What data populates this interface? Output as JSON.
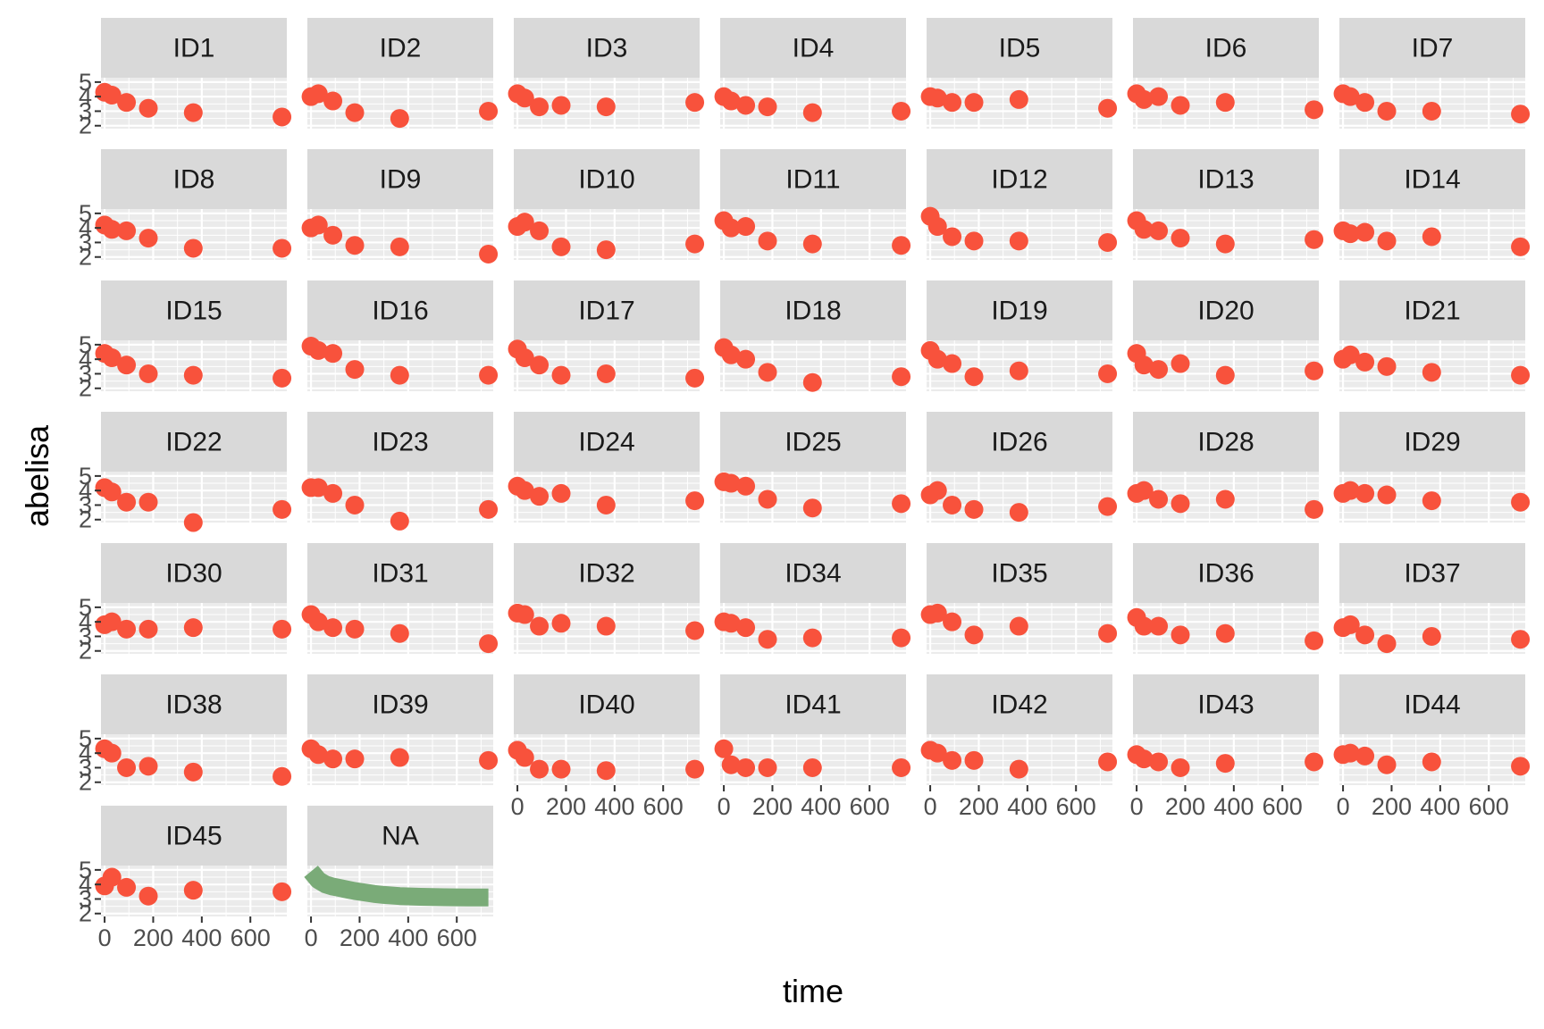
{
  "colors": {
    "panel_bg": "#ebebeb",
    "grid": "#ffffff",
    "strip_bg": "#d9d9d9",
    "tick": "#333333",
    "points": "#f8523c",
    "fit_line": "#7aab78"
  },
  "chart_data": {
    "type": "scatter",
    "facet_by": "ID",
    "xlabel": "time",
    "ylabel": "abelisa",
    "xlim": [
      -15,
      750
    ],
    "ylim": [
      1.8,
      5.3
    ],
    "x_ticks": [
      0,
      200,
      400,
      600
    ],
    "y_ticks": [
      2,
      3,
      4,
      5
    ],
    "x": [
      0,
      30,
      90,
      180,
      365,
      730
    ],
    "grid": true,
    "series": [
      {
        "name": "ID1",
        "values": [
          4.3,
          4.1,
          3.6,
          3.2,
          2.9,
          2.6
        ]
      },
      {
        "name": "ID2",
        "values": [
          4.0,
          4.2,
          3.7,
          2.9,
          2.5,
          3.0
        ]
      },
      {
        "name": "ID3",
        "values": [
          4.2,
          3.9,
          3.3,
          3.4,
          3.3,
          3.6
        ]
      },
      {
        "name": "ID4",
        "values": [
          4.0,
          3.7,
          3.4,
          3.3,
          2.9,
          3.0
        ]
      },
      {
        "name": "ID5",
        "values": [
          4.0,
          3.9,
          3.6,
          3.6,
          3.8,
          3.2
        ]
      },
      {
        "name": "ID6",
        "values": [
          4.2,
          3.8,
          4.0,
          3.4,
          3.6,
          3.1
        ]
      },
      {
        "name": "ID7",
        "values": [
          4.2,
          4.0,
          3.6,
          3.0,
          3.0,
          2.8
        ]
      },
      {
        "name": "ID8",
        "values": [
          4.2,
          3.9,
          3.8,
          3.3,
          2.6,
          2.6
        ]
      },
      {
        "name": "ID9",
        "values": [
          4.0,
          4.2,
          3.5,
          2.8,
          2.7,
          2.2
        ]
      },
      {
        "name": "ID10",
        "values": [
          4.1,
          4.4,
          3.8,
          2.7,
          2.5,
          2.9
        ]
      },
      {
        "name": "ID11",
        "values": [
          4.5,
          4.0,
          4.1,
          3.1,
          2.9,
          2.8
        ]
      },
      {
        "name": "ID12",
        "values": [
          4.8,
          4.1,
          3.4,
          3.1,
          3.1,
          3.0
        ]
      },
      {
        "name": "ID13",
        "values": [
          4.5,
          3.9,
          3.8,
          3.3,
          2.9,
          3.2
        ]
      },
      {
        "name": "ID14",
        "values": [
          3.8,
          3.6,
          3.7,
          3.1,
          3.4,
          2.7
        ]
      },
      {
        "name": "ID15",
        "values": [
          4.4,
          4.1,
          3.6,
          3.0,
          2.9,
          2.7
        ]
      },
      {
        "name": "ID16",
        "values": [
          4.9,
          4.6,
          4.4,
          3.3,
          2.9,
          2.9
        ]
      },
      {
        "name": "ID17",
        "values": [
          4.7,
          4.1,
          3.6,
          2.9,
          3.0,
          2.7
        ]
      },
      {
        "name": "ID18",
        "values": [
          4.8,
          4.3,
          4.0,
          3.1,
          2.4,
          2.8
        ]
      },
      {
        "name": "ID19",
        "values": [
          4.6,
          4.0,
          3.7,
          2.8,
          3.2,
          3.0
        ]
      },
      {
        "name": "ID20",
        "values": [
          4.4,
          3.6,
          3.3,
          3.7,
          2.9,
          3.2
        ]
      },
      {
        "name": "ID21",
        "values": [
          4.0,
          4.3,
          3.8,
          3.5,
          3.1,
          2.9
        ]
      },
      {
        "name": "ID22",
        "values": [
          4.2,
          3.9,
          3.2,
          3.2,
          1.8,
          2.7
        ]
      },
      {
        "name": "ID23",
        "values": [
          4.2,
          4.2,
          3.8,
          3.0,
          1.9,
          2.7
        ]
      },
      {
        "name": "ID24",
        "values": [
          4.3,
          4.0,
          3.6,
          3.8,
          3.0,
          3.3
        ]
      },
      {
        "name": "ID25",
        "values": [
          4.6,
          4.5,
          4.3,
          3.4,
          2.8,
          3.1
        ]
      },
      {
        "name": "ID26",
        "values": [
          3.7,
          4.0,
          3.0,
          2.7,
          2.5,
          2.9
        ]
      },
      {
        "name": "ID28",
        "values": [
          3.8,
          4.0,
          3.4,
          3.1,
          3.4,
          2.7
        ]
      },
      {
        "name": "ID29",
        "values": [
          3.8,
          4.0,
          3.8,
          3.7,
          3.3,
          3.2
        ]
      },
      {
        "name": "ID30",
        "values": [
          3.8,
          4.0,
          3.5,
          3.5,
          3.6,
          3.5
        ]
      },
      {
        "name": "ID31",
        "values": [
          4.5,
          4.0,
          3.6,
          3.5,
          3.2,
          2.5
        ]
      },
      {
        "name": "ID32",
        "values": [
          4.6,
          4.5,
          3.7,
          3.9,
          3.7,
          3.4
        ]
      },
      {
        "name": "ID34",
        "values": [
          4.0,
          3.9,
          3.6,
          2.8,
          2.9,
          2.9
        ]
      },
      {
        "name": "ID35",
        "values": [
          4.5,
          4.6,
          4.0,
          3.1,
          3.7,
          3.2
        ]
      },
      {
        "name": "ID36",
        "values": [
          4.3,
          3.7,
          3.7,
          3.1,
          3.2,
          2.7
        ]
      },
      {
        "name": "ID37",
        "values": [
          3.6,
          3.8,
          3.1,
          2.5,
          3.0,
          2.8
        ]
      },
      {
        "name": "ID38",
        "values": [
          4.3,
          4.0,
          3.0,
          3.1,
          2.7,
          2.4
        ]
      },
      {
        "name": "ID39",
        "values": [
          4.3,
          3.9,
          3.6,
          3.6,
          3.7,
          3.5
        ]
      },
      {
        "name": "ID40",
        "values": [
          4.2,
          3.7,
          2.9,
          2.9,
          2.8,
          2.9
        ]
      },
      {
        "name": "ID41",
        "values": [
          4.3,
          3.2,
          3.0,
          3.0,
          3.0,
          3.0
        ]
      },
      {
        "name": "ID42",
        "values": [
          4.2,
          4.0,
          3.5,
          3.5,
          2.9,
          3.4
        ]
      },
      {
        "name": "ID43",
        "values": [
          3.9,
          3.6,
          3.4,
          3.0,
          3.3,
          3.4
        ]
      },
      {
        "name": "ID44",
        "values": [
          3.9,
          4.0,
          3.8,
          3.2,
          3.4,
          3.1
        ]
      },
      {
        "name": "ID45",
        "values": [
          3.9,
          4.5,
          3.8,
          3.2,
          3.6,
          3.5
        ]
      },
      {
        "name": "NA",
        "kind": "line",
        "x": [
          0,
          30,
          60,
          90,
          120,
          150,
          180,
          220,
          260,
          300,
          365,
          450,
          550,
          650,
          730
        ],
        "values": [
          4.9,
          4.3,
          4.0,
          3.85,
          3.75,
          3.65,
          3.55,
          3.45,
          3.35,
          3.28,
          3.2,
          3.15,
          3.12,
          3.1,
          3.1
        ]
      }
    ]
  }
}
